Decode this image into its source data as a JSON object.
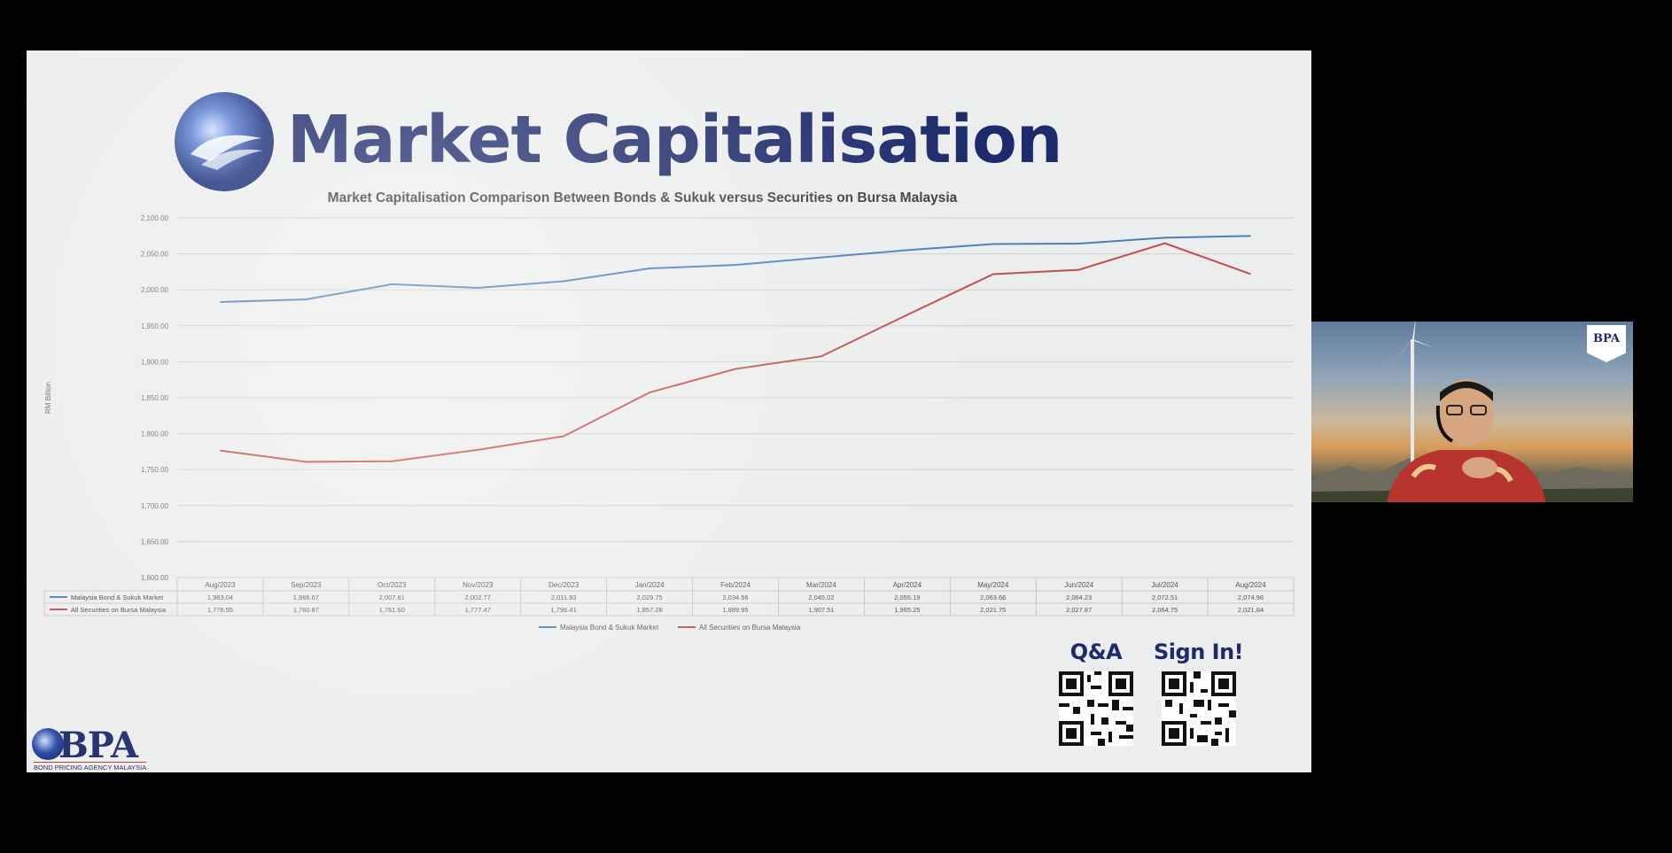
{
  "slide": {
    "title": "Market Capitalisation",
    "qr_qa_label": "Q&A",
    "qr_signin_label": "Sign In!",
    "org_logo_text": "BPA",
    "org_logo_subtext": "BOND PRICING AGENCY MALAYSIA"
  },
  "video": {
    "logo_text": "BPA"
  },
  "colors": {
    "title_navy": "#1d2a6b",
    "bond_series": "#4a7ebb",
    "securities_series": "#c0504d",
    "slide_bg": "#eceded"
  },
  "chart_data": {
    "type": "line",
    "title": "Market Capitalisation Comparison Between Bonds & Sukuk versus Securities on Bursa Malaysia",
    "ylabel": "RM Billion",
    "xlabel": "",
    "ylim": [
      1600,
      2100
    ],
    "yticks": [
      "2,100.00",
      "2,050.00",
      "2,000.00",
      "1,950.00",
      "1,900.00",
      "1,850.00",
      "1,800.00",
      "1,750.00",
      "1,700.00",
      "1,650.00",
      "1,600.00"
    ],
    "ytick_values": [
      2100,
      2050,
      2000,
      1950,
      1900,
      1850,
      1800,
      1750,
      1700,
      1650,
      1600
    ],
    "categories": [
      "Aug/2023",
      "Sep/2023",
      "Oct/2023",
      "Nov/2023",
      "Dec/2023",
      "Jan/2024",
      "Feb/2024",
      "Mar/2024",
      "Apr/2024",
      "May/2024",
      "Jun/2024",
      "Jul/2024",
      "Aug/2024"
    ],
    "grid": true,
    "legend_position": "bottom",
    "series": [
      {
        "name": "Malaysia Bond & Sukuk Market",
        "color": "#4a7ebb",
        "values": [
          1983.04,
          1986.67,
          2007.81,
          2002.77,
          2011.93,
          2029.75,
          2034.56,
          2045.02,
          2055.19,
          2063.66,
          2064.23,
          2072.51,
          2074.96
        ],
        "labels": [
          "1,983.04",
          "1,986.67",
          "2,007.81",
          "2,002.77",
          "2,011.93",
          "2,029.75",
          "2,034.56",
          "2,045.02",
          "2,055.19",
          "2,063.66",
          "2,064.23",
          "2,072.51",
          "2,074.96"
        ]
      },
      {
        "name": "All Securities on Bursa Malaysia",
        "color": "#c0504d",
        "values": [
          1776.55,
          1760.87,
          1761.6,
          1777.47,
          1796.41,
          1857.28,
          1889.95,
          1907.51,
          1965.25,
          2021.75,
          2027.87,
          2064.75,
          2021.84
        ],
        "labels": [
          "1,776.55",
          "1,760.87",
          "1,761.60",
          "1,777.47",
          "1,796.41",
          "1,857.28",
          "1,889.95",
          "1,907.51",
          "1,965.25",
          "2,021.75",
          "2,027.87",
          "2,064.75",
          "2,021.84"
        ]
      }
    ]
  }
}
